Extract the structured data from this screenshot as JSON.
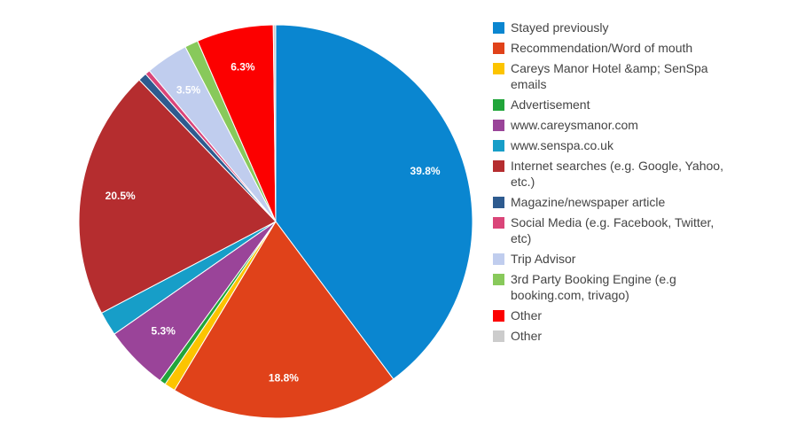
{
  "chart_data": {
    "type": "pie",
    "title": "",
    "slices": [
      {
        "label": "Stayed previously",
        "value": 39.8,
        "color": "#0a86d0",
        "display": "39.8%"
      },
      {
        "label": "Recommendation/Word of mouth",
        "value": 18.8,
        "color": "#e0421a",
        "display": "18.8%"
      },
      {
        "label": "Careys Manor Hotel &amp; SenSpa emails",
        "value": 0.9,
        "color": "#fcc400",
        "display": ""
      },
      {
        "label": "Advertisement",
        "value": 0.5,
        "color": "#21a53a",
        "display": ""
      },
      {
        "label": "www.careysmanor.com",
        "value": 5.3,
        "color": "#9a4499",
        "display": "5.3%"
      },
      {
        "label": "www.senspa.co.uk",
        "value": 2.0,
        "color": "#179ec8",
        "display": ""
      },
      {
        "label": "Internet searches (e.g. Google, Yahoo, etc.)",
        "value": 20.5,
        "color": "#b52d2f",
        "display": "20.5%"
      },
      {
        "label": "Magazine/newspaper article",
        "value": 0.7,
        "color": "#2e5b8f",
        "display": ""
      },
      {
        "label": "Social Media (e.g. Facebook, Twitter, etc)",
        "value": 0.4,
        "color": "#da4579",
        "display": ""
      },
      {
        "label": "Trip Advisor",
        "value": 3.5,
        "color": "#c0cdee",
        "display": "3.5%"
      },
      {
        "label": "3rd Party Booking Engine (e.g booking.com, trivago)",
        "value": 1.1,
        "color": "#88c95b",
        "display": ""
      },
      {
        "label": "Other",
        "value": 6.3,
        "color": "#fc0000",
        "display": "6.3%"
      },
      {
        "label": "Other",
        "value": 0.2,
        "color": "#cccccc",
        "display": ""
      }
    ],
    "legend_position": "right"
  }
}
